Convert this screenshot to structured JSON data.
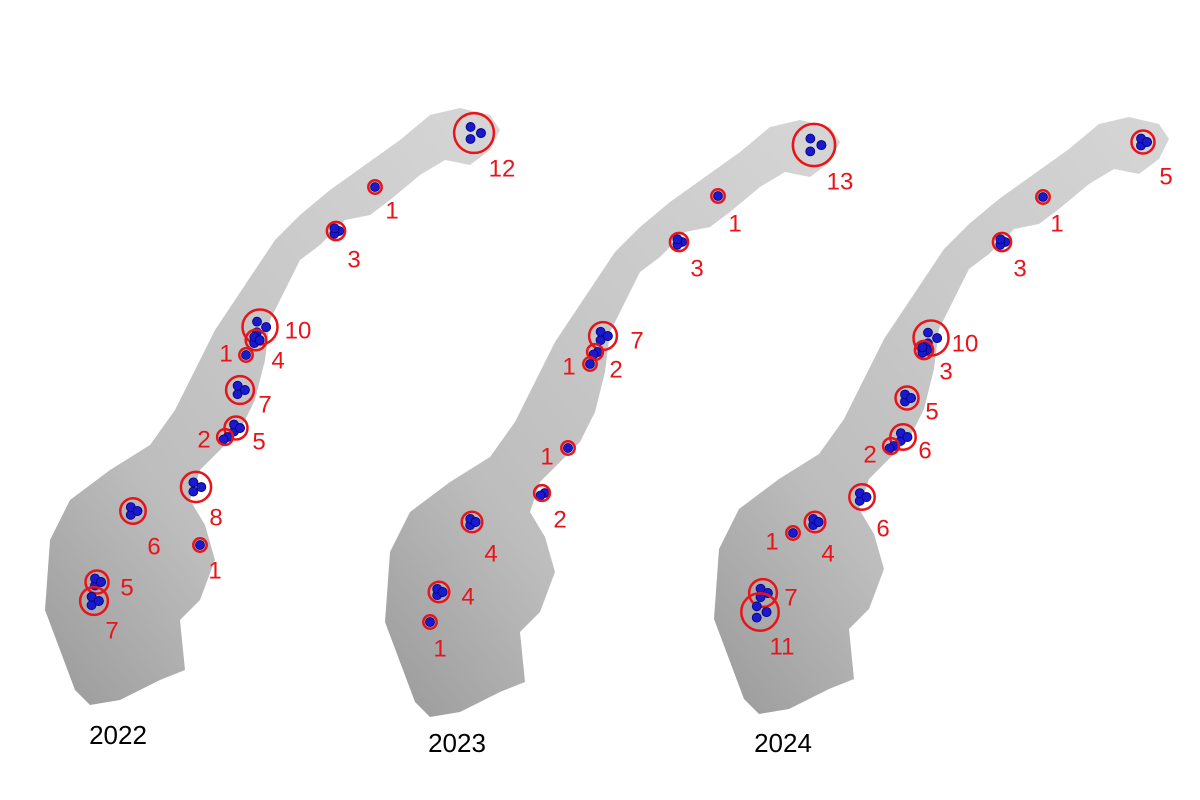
{
  "panels": [
    {
      "year": "2022",
      "clusters": [
        {
          "count": 12
        },
        {
          "count": 1
        },
        {
          "count": 3
        },
        {
          "count": 10
        },
        {
          "count": 4
        },
        {
          "count": 1
        },
        {
          "count": 7
        },
        {
          "count": 5
        },
        {
          "count": 2
        },
        {
          "count": 8
        },
        {
          "count": 6
        },
        {
          "count": 1
        },
        {
          "count": 5
        },
        {
          "count": 7
        }
      ]
    },
    {
      "year": "2023",
      "clusters": [
        {
          "count": 13
        },
        {
          "count": 1
        },
        {
          "count": 3
        },
        {
          "count": 7
        },
        {
          "count": 2
        },
        {
          "count": 1
        },
        {
          "count": 1
        },
        {
          "count": 2
        },
        {
          "count": 4
        },
        {
          "count": 4
        },
        {
          "count": 1
        }
      ]
    },
    {
      "year": "2024",
      "clusters": [
        {
          "count": 5
        },
        {
          "count": 1
        },
        {
          "count": 3
        },
        {
          "count": 10
        },
        {
          "count": 3
        },
        {
          "count": 5
        },
        {
          "count": 6
        },
        {
          "count": 2
        },
        {
          "count": 6
        },
        {
          "count": 4
        },
        {
          "count": 1
        },
        {
          "count": 7
        },
        {
          "count": 11
        }
      ]
    }
  ]
}
